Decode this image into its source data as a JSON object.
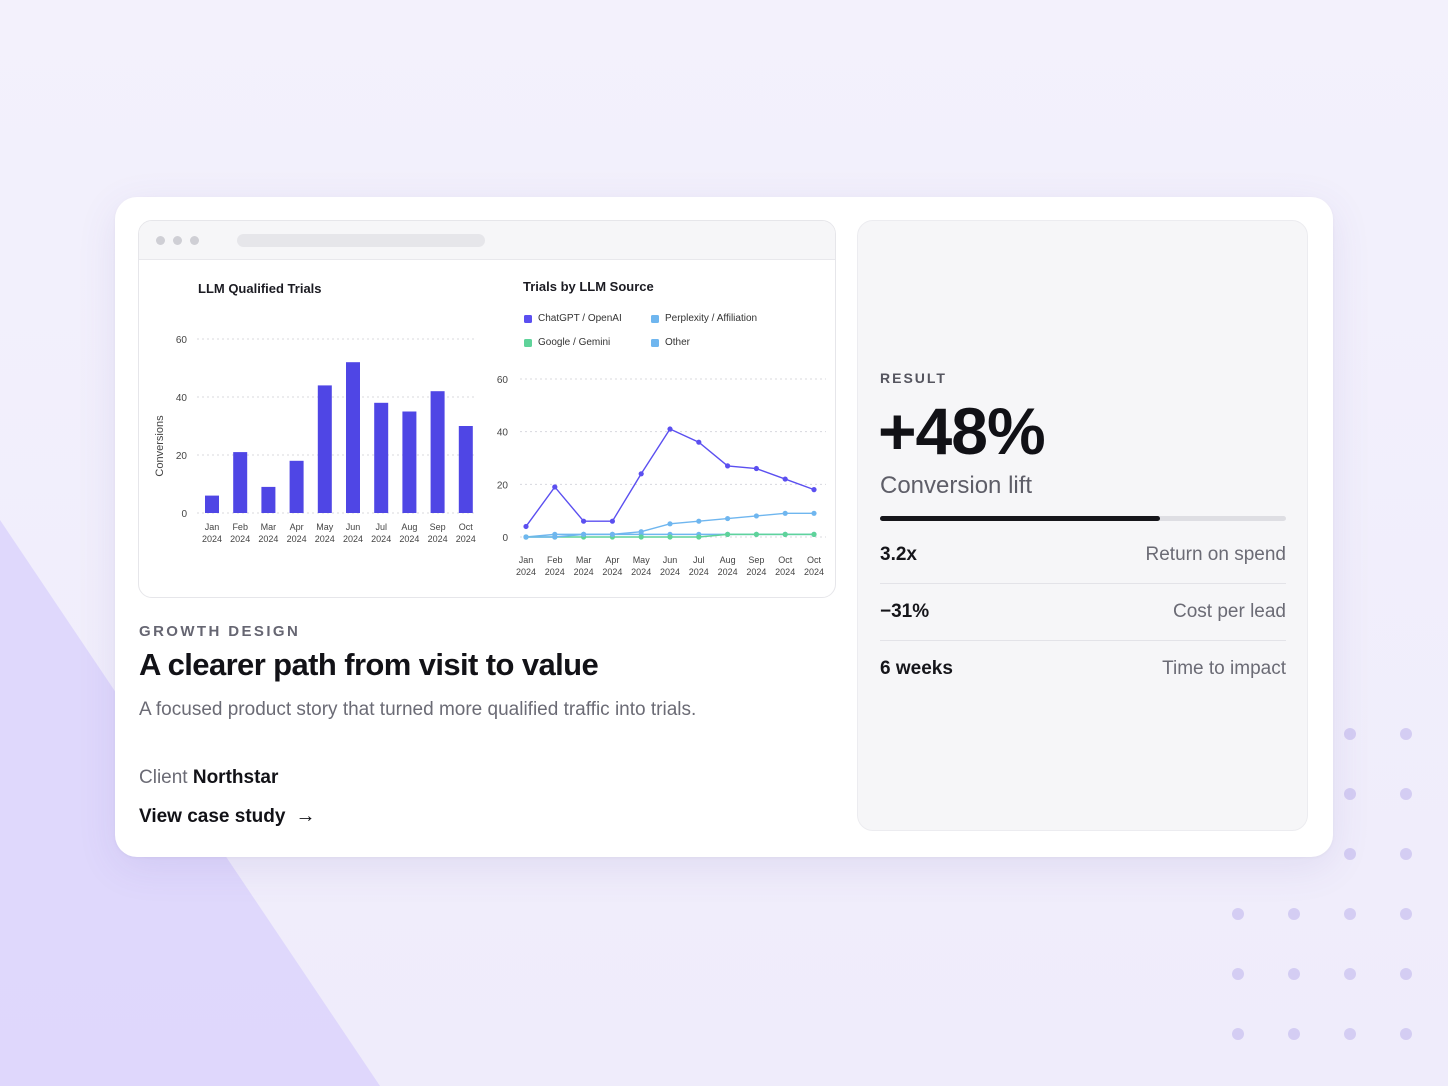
{
  "colors": {
    "accent": "#4f46e5",
    "line_purple": "#5b4ff0",
    "line_lightblue": "#6fb6ef",
    "line_green": "#5fd39a",
    "background": "#f3f1fc"
  },
  "card": {
    "eyebrow": "GROWTH DESIGN",
    "headline": "A clearer path from visit to value",
    "description": "A focused product story that turned more qualified traffic into trials.",
    "client_label": "Client",
    "client_name": "Northstar",
    "cta_label": "View case study",
    "cta_icon": "arrow-right-icon"
  },
  "result": {
    "label": "RESULT",
    "value": "+48%",
    "caption": "Conversion lift",
    "progress": 0.69,
    "metrics": [
      {
        "value": "3.2x",
        "label": "Return on spend"
      },
      {
        "value": "−31%",
        "label": "Cost per lead"
      },
      {
        "value": "6 weeks",
        "label": "Time to impact"
      }
    ]
  },
  "chart_data": [
    {
      "type": "bar",
      "title": "LLM Qualified Trials",
      "ylabel": "Conversions",
      "xlabel": "",
      "ylim": [
        0,
        60
      ],
      "yticks": [
        0,
        20,
        40,
        60
      ],
      "grid": true,
      "categories": [
        "Jan 2024",
        "Feb 2024",
        "Mar 2024",
        "Apr 2024",
        "May 2024",
        "Jun 2024",
        "Jul 2024",
        "Aug 2024",
        "Sep 2024",
        "Oct 2024"
      ],
      "values": [
        6,
        21,
        9,
        18,
        44,
        52,
        38,
        35,
        42,
        30
      ]
    },
    {
      "type": "line",
      "title": "Trials by LLM Source",
      "ylim": [
        0,
        60
      ],
      "yticks": [
        0,
        20,
        40,
        60
      ],
      "grid": true,
      "legend_position": "top",
      "categories": [
        "Jan 2024",
        "Feb 2024",
        "Mar 2024",
        "Apr 2024",
        "May 2024",
        "Jun 2024",
        "Jul 2024",
        "Aug 2024",
        "Sep 2024",
        "Oct 2024",
        "Oct 2024"
      ],
      "series": [
        {
          "name": "ChatGPT / OpenAI",
          "color": "#5b4ff0",
          "values": [
            4,
            19,
            6,
            6,
            24,
            41,
            36,
            27,
            26,
            22,
            18
          ]
        },
        {
          "name": "Perplexity / Affiliation",
          "color": "#6fb6ef",
          "values": [
            0,
            0,
            1,
            1,
            2,
            5,
            6,
            7,
            8,
            9,
            9
          ]
        },
        {
          "name": "Google / Gemini",
          "color": "#5fd39a",
          "values": [
            0,
            0,
            0,
            0,
            0,
            0,
            0,
            1,
            1,
            1,
            1
          ]
        },
        {
          "name": "Other",
          "color": "#6fb6ef",
          "values": [
            0,
            1,
            1,
            1,
            1,
            1,
            1,
            1,
            1,
            1,
            1
          ]
        }
      ]
    }
  ]
}
